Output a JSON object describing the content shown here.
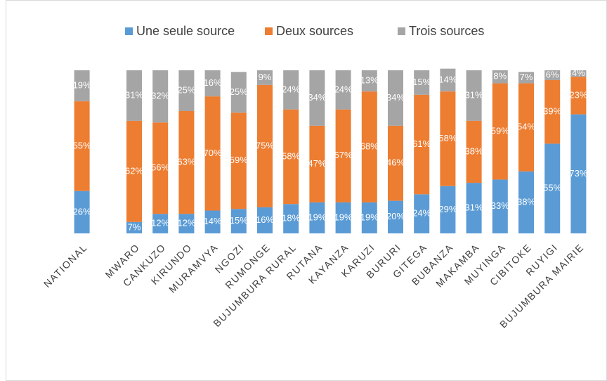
{
  "chart_data": {
    "type": "stacked_bar",
    "categories": [
      "NATIONAL",
      null,
      "MWARO",
      "CANKUZO",
      "KIRUNDO",
      "MURAMVYA",
      "NGOZI",
      "RUMONGE",
      "BUJUMBURA RURAL",
      "RUTANA",
      "KAYANZA",
      "KARUZI",
      "BURURI",
      "GITEGA",
      "BUBANZA",
      "MAKAMBA",
      "MUYINGA",
      "CIBITOKE",
      "RUYIGI",
      "BUJUMBURA MAIRIE"
    ],
    "series": [
      {
        "name": "Une seule source",
        "color": "#5b9bd5",
        "values": [
          26,
          null,
          7,
          12,
          12,
          14,
          15,
          16,
          18,
          19,
          19,
          19,
          20,
          24,
          29,
          31,
          33,
          38,
          55,
          73
        ],
        "value_labels": [
          "26%",
          null,
          "7%",
          "12%",
          "12%",
          "14%",
          "15%",
          "16%",
          "18%",
          "19%",
          "19%",
          "19%",
          "20%",
          "24%",
          "29%",
          "31%",
          "33%",
          "38%",
          "55%",
          "73%"
        ]
      },
      {
        "name": "Deux sources",
        "color": "#ed7d31",
        "values": [
          55,
          null,
          62,
          56,
          63,
          70,
          59,
          75,
          58,
          47,
          57,
          68,
          46,
          61,
          58,
          38,
          59,
          54,
          39,
          23
        ],
        "value_labels": [
          "55%",
          null,
          "62%",
          "56%",
          "63%",
          "70%",
          "59%",
          "75%",
          "58%",
          "47%",
          "57%",
          "68%",
          "46%",
          "61%",
          "58%",
          "38%",
          "59%",
          "54%",
          "39%",
          "23%"
        ]
      },
      {
        "name": "Trois sources",
        "color": "#a5a5a5",
        "values": [
          19,
          null,
          31,
          32,
          25,
          16,
          25,
          9,
          24,
          34,
          24,
          13,
          34,
          15,
          14,
          31,
          8,
          7,
          6,
          4
        ],
        "value_labels": [
          "19%",
          null,
          "31%",
          "32%",
          "25%",
          "16%",
          "25%",
          "9%",
          "24%",
          "34%",
          "24%",
          "13%",
          "34%",
          "15%",
          "14%",
          "31%",
          "8%",
          "7%",
          "6%",
          "4%"
        ]
      }
    ],
    "ylim": [
      0,
      100
    ],
    "legend": "top"
  }
}
